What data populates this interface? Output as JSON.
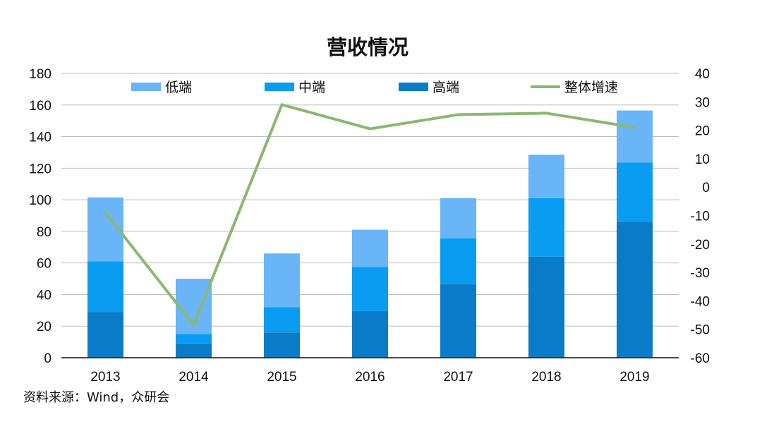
{
  "chart_data": {
    "type": "bar",
    "stacked": true,
    "title": "营收情况",
    "categories": [
      "2013",
      "2014",
      "2015",
      "2016",
      "2017",
      "2018",
      "2019"
    ],
    "series": [
      {
        "name": "高端",
        "type": "bar",
        "axis": "left",
        "color": "#0a7cc7",
        "values": [
          29,
          9,
          16,
          29.5,
          46.5,
          64,
          86
        ]
      },
      {
        "name": "中端",
        "type": "bar",
        "axis": "left",
        "color": "#0a9cf0",
        "values": [
          32,
          6,
          16,
          28,
          29,
          37,
          37.5
        ]
      },
      {
        "name": "低端",
        "type": "bar",
        "axis": "left",
        "color": "#6ab4f8",
        "values": [
          40.5,
          35,
          34,
          23.5,
          25.5,
          27.5,
          33
        ]
      },
      {
        "name": "整体增速",
        "type": "line",
        "axis": "right",
        "color": "#8ab870",
        "values": [
          -9,
          -48.5,
          29,
          20.5,
          25.5,
          26,
          21
        ]
      }
    ],
    "y_left": {
      "min": 0,
      "max": 180,
      "ticks": [
        "0",
        "20",
        "40",
        "60",
        "80",
        "100",
        "120",
        "140",
        "160",
        "180"
      ]
    },
    "y_right": {
      "min": -60,
      "max": 40,
      "ticks": [
        "-60",
        "-50",
        "-40",
        "-30",
        "-20",
        "-10",
        "0",
        "10",
        "20",
        "30",
        "40"
      ]
    },
    "legend_order": [
      "低端",
      "中端",
      "高端",
      "整体增速"
    ],
    "legend_position": "top",
    "grid": true
  },
  "source_text": "资料来源：Wind，众研会"
}
